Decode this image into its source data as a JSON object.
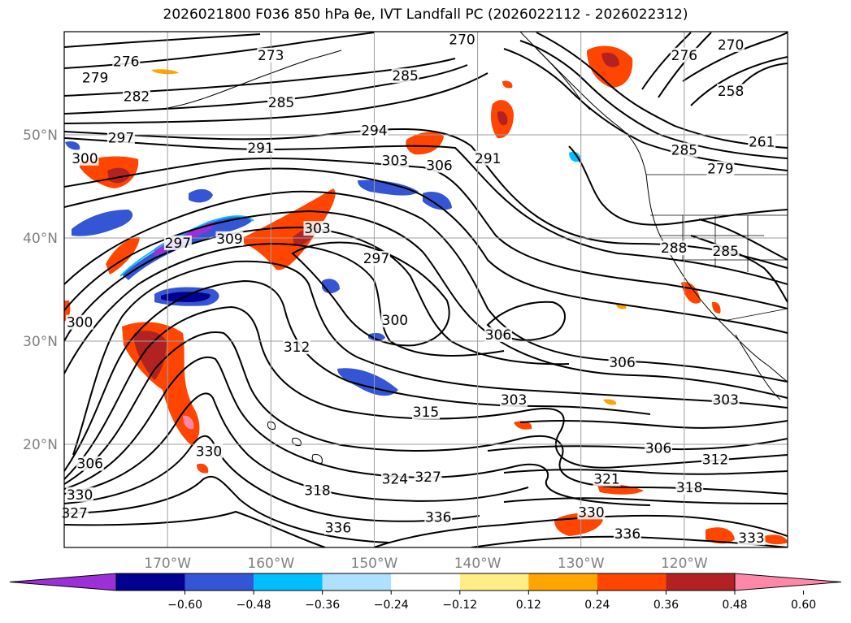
{
  "title": "2026021800 F036 850 hPa θe, IVT Landfall PC (2026022112 - 2026022312)",
  "colors": {
    "coast": "#000000",
    "grid": "#9e9e9e",
    "axis_label": "#808080",
    "contour": "#000000"
  },
  "map": {
    "lat_ticks": [
      "50°N",
      "40°N",
      "30°N",
      "20°N"
    ],
    "lon_ticks": [
      "170°W",
      "160°W",
      "150°W",
      "140°W",
      "130°W",
      "120°W"
    ]
  },
  "contour_labels": [
    {
      "text": "276",
      "lon": -174,
      "lat": 56.9
    },
    {
      "text": "273",
      "lon": -160,
      "lat": 57.5
    },
    {
      "text": "279",
      "lon": -177,
      "lat": 55.3
    },
    {
      "text": "282",
      "lon": -173,
      "lat": 53.5
    },
    {
      "text": "285",
      "lon": -159,
      "lat": 52.9
    },
    {
      "text": "285",
      "lon": -147,
      "lat": 55.5
    },
    {
      "text": "297",
      "lon": -174.5,
      "lat": 49.5
    },
    {
      "text": "300",
      "lon": -178,
      "lat": 47.5
    },
    {
      "text": "291",
      "lon": -161,
      "lat": 48.5
    },
    {
      "text": "294",
      "lon": -150,
      "lat": 50.2
    },
    {
      "text": "303",
      "lon": -148,
      "lat": 47.3
    },
    {
      "text": "306",
      "lon": -143.7,
      "lat": 46.8
    },
    {
      "text": "291",
      "lon": -139,
      "lat": 47.5
    },
    {
      "text": "297",
      "lon": -169,
      "lat": 39.3
    },
    {
      "text": "309",
      "lon": -164,
      "lat": 39.7
    },
    {
      "text": "303",
      "lon": -155.5,
      "lat": 40.7
    },
    {
      "text": "297",
      "lon": -149.8,
      "lat": 37.8
    },
    {
      "text": "300",
      "lon": -178.5,
      "lat": 31.6
    },
    {
      "text": "300",
      "lon": -148,
      "lat": 31.8
    },
    {
      "text": "312",
      "lon": -157.5,
      "lat": 29.2
    },
    {
      "text": "306",
      "lon": -138,
      "lat": 30.4
    },
    {
      "text": "306",
      "lon": -126,
      "lat": 27.7
    },
    {
      "text": "303",
      "lon": -136.5,
      "lat": 24.1
    },
    {
      "text": "303",
      "lon": -116,
      "lat": 24.1
    },
    {
      "text": "315",
      "lon": -145,
      "lat": 22.9
    },
    {
      "text": "306",
      "lon": -122.5,
      "lat": 19.4
    },
    {
      "text": "312",
      "lon": -117,
      "lat": 18.3
    },
    {
      "text": "330",
      "lon": -166,
      "lat": 19.1
    },
    {
      "text": "306",
      "lon": -177.5,
      "lat": 17.9
    },
    {
      "text": "324",
      "lon": -148,
      "lat": 16.4
    },
    {
      "text": "327",
      "lon": -144.8,
      "lat": 16.6
    },
    {
      "text": "318",
      "lon": -155.5,
      "lat": 15.3
    },
    {
      "text": "321",
      "lon": -127.5,
      "lat": 16.4
    },
    {
      "text": "318",
      "lon": -119.5,
      "lat": 15.6
    },
    {
      "text": "330",
      "lon": -178.5,
      "lat": 14.9
    },
    {
      "text": "327",
      "lon": -179,
      "lat": 13.1
    },
    {
      "text": "330",
      "lon": -129,
      "lat": 13.2
    },
    {
      "text": "336",
      "lon": -143.8,
      "lat": 12.7
    },
    {
      "text": "336",
      "lon": -153.5,
      "lat": 11.7
    },
    {
      "text": "336",
      "lon": -125.5,
      "lat": 11.1
    },
    {
      "text": "333",
      "lon": -113.5,
      "lat": 10.7
    },
    {
      "text": "288",
      "lon": -121,
      "lat": 38.8
    },
    {
      "text": "285",
      "lon": -116,
      "lat": 38.5
    },
    {
      "text": "285",
      "lon": -120,
      "lat": 48.3
    },
    {
      "text": "279",
      "lon": -116.5,
      "lat": 46.5
    },
    {
      "text": "261",
      "lon": -112.5,
      "lat": 49.1
    },
    {
      "text": "258",
      "lon": -115.5,
      "lat": 54.0
    },
    {
      "text": "270",
      "lon": -115.5,
      "lat": 58.5
    },
    {
      "text": "276",
      "lon": -120,
      "lat": 57.5
    },
    {
      "text": "270",
      "lon": -141.5,
      "lat": 59.0
    }
  ],
  "colorbar": {
    "ticks": [
      "−0.60",
      "−0.48",
      "−0.36",
      "−0.24",
      "−0.12",
      "0.12",
      "0.24",
      "0.36",
      "0.48",
      "0.60"
    ],
    "bins": [
      "#9b30d9",
      "#000090",
      "#3556d4",
      "#00bfff",
      "#b0e0ff",
      "#ffffff",
      "#ffee88",
      "#ffa500",
      "#ff4500",
      "#b22222",
      "#ff88aa"
    ]
  }
}
